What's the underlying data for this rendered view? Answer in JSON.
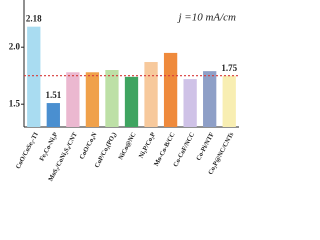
{
  "chart_data": {
    "type": "bar",
    "title": "j =10 mA/cm",
    "categories": [
      "CoO/CoSe₂-TI",
      "Fe₂Co-Ni₃P",
      "MoS₂/CoNi₂S₄/CNT",
      "CoO/Co₄N",
      "CoP/Co₂(PO₄)",
      "NiCo@NC",
      "Ni₂P/Co₂P",
      "Mo-Co-B/CC",
      "Co-CoF/NCC",
      "Co-Pi/NTF",
      "Co₂P@NC/CNTs"
    ],
    "values": [
      2.18,
      1.51,
      1.78,
      1.78,
      1.8,
      1.74,
      1.87,
      1.95,
      1.72,
      1.79,
      1.75
    ],
    "colors": [
      "#a9dcf1",
      "#4a8fd0",
      "#ebb8d0",
      "#f0a14a",
      "#bde0a6",
      "#3fa460",
      "#f7c99c",
      "#ef8a3c",
      "#cfc2e7",
      "#8e9fc7",
      "#f8eeb2"
    ],
    "labeled": [
      0,
      1,
      10
    ],
    "highlight": {
      "index": 10,
      "color": "#e8412c"
    },
    "reference_line": {
      "value": 1.75,
      "color": "#d83a3a"
    },
    "ylim": [
      1.3,
      2.3
    ],
    "yticks": [
      1.5,
      {
        "value": 2,
        "label": "2.0"
      }
    ]
  }
}
